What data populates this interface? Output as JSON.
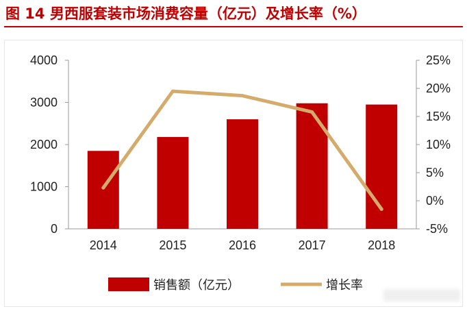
{
  "title": "图 14 男西服套装市场消费容量（亿元）及增长率（%）",
  "colors": {
    "accent": "#c00000",
    "bar": "#c00000",
    "line": "#d4ab6a",
    "axis": "#999999"
  },
  "chart_data": {
    "type": "bar",
    "categories": [
      "2014",
      "2015",
      "2016",
      "2017",
      "2018"
    ],
    "series": [
      {
        "name": "销售额（亿元）",
        "type": "bar",
        "axis": "left",
        "values": [
          1850,
          2180,
          2600,
          2980,
          2950
        ]
      },
      {
        "name": "增长率",
        "type": "line",
        "axis": "right",
        "values": [
          2.3,
          19.5,
          18.7,
          15.8,
          -1.5
        ]
      }
    ],
    "y_left": {
      "ylim": [
        0,
        4000
      ],
      "ticks": [
        "0",
        "1000",
        "2000",
        "3000",
        "4000"
      ]
    },
    "y_right": {
      "ylim": [
        -5,
        25
      ],
      "ticks": [
        "-5%",
        "0%",
        "5%",
        "10%",
        "15%",
        "20%",
        "25%"
      ]
    },
    "grid": false,
    "legend": {
      "placement": "bottom",
      "labels": [
        "销售额（亿元）",
        "增长率"
      ]
    }
  }
}
